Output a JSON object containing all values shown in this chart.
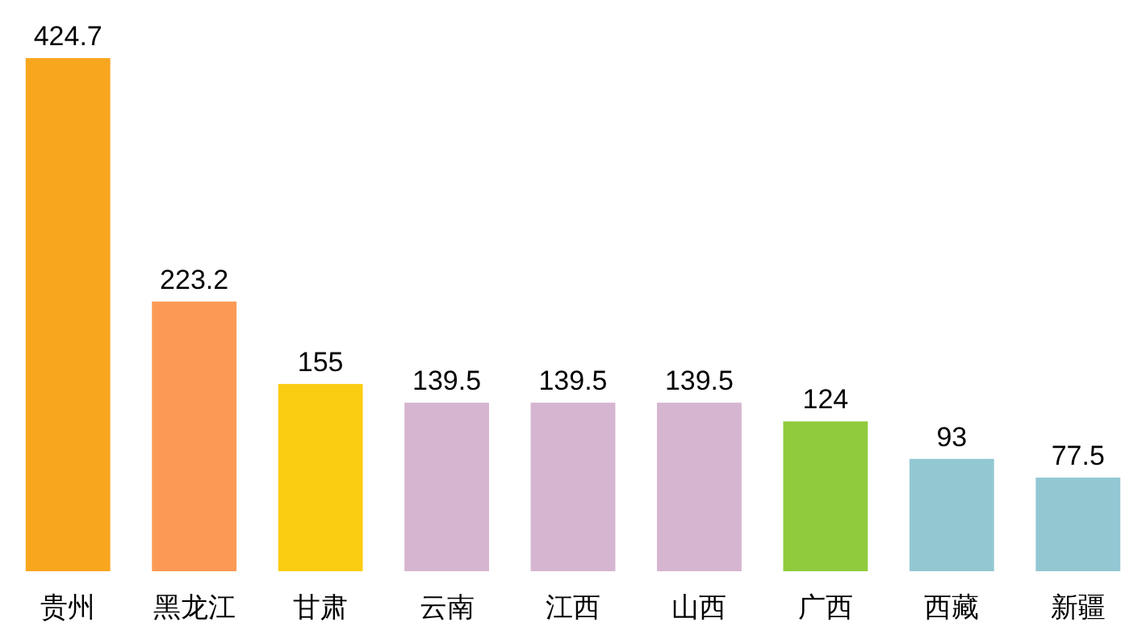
{
  "chart_data": {
    "type": "bar",
    "categories": [
      "贵州",
      "黑龙江",
      "甘肃",
      "云南",
      "江西",
      "山西",
      "广西",
      "西藏",
      "新疆"
    ],
    "values": [
      424.7,
      223.2,
      155,
      139.5,
      139.5,
      139.5,
      124,
      93,
      77.5
    ],
    "colors": [
      "#f9a61f",
      "#fc9a55",
      "#fbcd12",
      "#d6b5d1",
      "#d6b5d1",
      "#d6b5d1",
      "#8fcb3c",
      "#93c8d3",
      "#93c8d3"
    ],
    "data_labels": true
  }
}
